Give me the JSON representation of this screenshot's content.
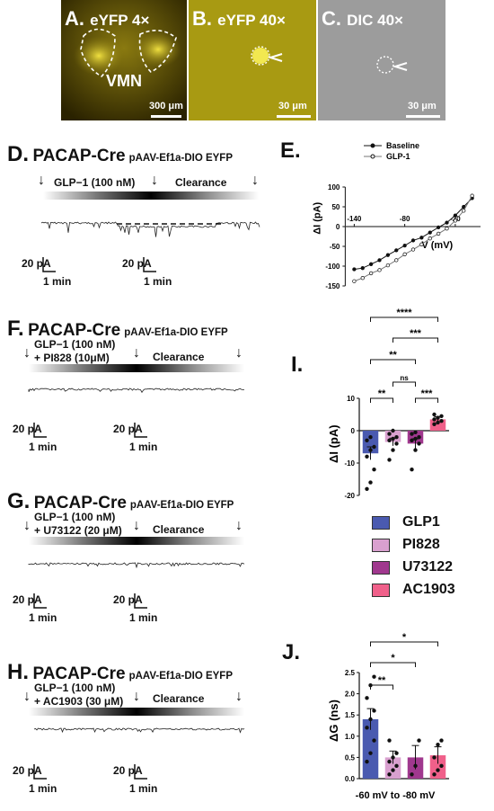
{
  "panels_micro": [
    {
      "letter": "A.",
      "label": "eYFP 4×",
      "region": "VMN",
      "scale": "300 μm",
      "color": "#5a4a05"
    },
    {
      "letter": "B.",
      "label": "eYFP 40×",
      "scale": "30 μm",
      "color": "#a89a10"
    },
    {
      "letter": "C.",
      "label": "DIC 40×",
      "scale": "30 μm",
      "color": "#9a9a9a"
    }
  ],
  "panel_d": {
    "letter": "D.",
    "title": "PACAP-Cre",
    "vector": "pAAV-Ef1a-DIO EYFP",
    "drug": "GLP−1 (100 nM)",
    "clearance": "Clearance",
    "scale_pa": "20 pA",
    "scale_t": "1 min"
  },
  "panel_f": {
    "letter": "F.",
    "title": "PACAP-Cre",
    "vector": "pAAV-Ef1a-DIO EYFP",
    "drug1": "GLP−1 (100 nM)",
    "drug2": "+ PI828 (10μM)",
    "clearance": "Clearance",
    "scale_pa": "20 pA",
    "scale_t": "1 min"
  },
  "panel_g": {
    "letter": "G.",
    "title": "PACAP-Cre",
    "vector": "pAAV-Ef1a-DIO EYFP",
    "drug1": "GLP−1 (100 nM)",
    "drug2": "+ U73122 (20 μM)",
    "clearance": "Clearance",
    "scale_pa": "20 pA",
    "scale_t": "1 min"
  },
  "panel_h": {
    "letter": "H.",
    "title": "PACAP-Cre",
    "vector": "pAAV-Ef1a-DIO EYFP",
    "drug1": "GLP−1 (100 nM)",
    "drug2": "+ AC1903 (30 μM)",
    "clearance": "Clearance",
    "scale_pa": "20 pA",
    "scale_t": "1 min"
  },
  "legend": [
    {
      "label": "GLP1",
      "color": "#4a5ab0"
    },
    {
      "label": "PI828",
      "color": "#d9a0cf"
    },
    {
      "label": "U73122",
      "color": "#a0388e"
    },
    {
      "label": "AC1903",
      "color": "#f0608a"
    }
  ],
  "chart_data": [
    {
      "panel": "E.",
      "type": "line",
      "xlabel": "V (mV)",
      "ylabel": "ΔI (pA)",
      "xlim": [
        -150,
        10
      ],
      "ylim": [
        -150,
        100
      ],
      "xticks": [
        "-140",
        "-80",
        "-20"
      ],
      "yticks": [
        "100",
        "50",
        "0",
        "-50",
        "-100",
        "-150"
      ],
      "legend_position": "top",
      "series": [
        {
          "name": "Baseline",
          "x": [
            -140,
            -130,
            -120,
            -110,
            -100,
            -90,
            -80,
            -70,
            -60,
            -50,
            -40,
            -30,
            -20,
            -10,
            0
          ],
          "y": [
            -108,
            -105,
            -95,
            -85,
            -72,
            -60,
            -48,
            -35,
            -28,
            -15,
            -2,
            10,
            28,
            50,
            72
          ]
        },
        {
          "name": "GLP-1",
          "x": [
            -140,
            -130,
            -120,
            -110,
            -100,
            -90,
            -80,
            -70,
            -60,
            -50,
            -40,
            -30,
            -20,
            -10,
            0
          ],
          "y": [
            -138,
            -130,
            -118,
            -110,
            -98,
            -85,
            -70,
            -58,
            -45,
            -30,
            -18,
            -5,
            15,
            40,
            78
          ]
        }
      ]
    },
    {
      "panel": "I.",
      "type": "bar",
      "ylabel": "ΔI (pA)",
      "ylim": [
        -20,
        10
      ],
      "yticks": [
        "10",
        "0",
        "-10",
        "-20"
      ],
      "categories": [
        "GLP1",
        "PI828",
        "U73122",
        "AC1903"
      ],
      "values": [
        -7,
        -3.5,
        -4,
        3.5
      ],
      "errors": [
        2,
        1.2,
        1.5,
        0.8
      ],
      "points": [
        [
          -18,
          -16,
          -12,
          -8,
          -6,
          -5,
          -3,
          -2
        ],
        [
          -9,
          -6,
          -4,
          -3,
          -2.5,
          -2,
          -1,
          0
        ],
        [
          -12,
          -6,
          -4,
          -3,
          -2.5,
          -2,
          -1,
          -0.5
        ],
        [
          2,
          2.5,
          3,
          3.5,
          4,
          4.5,
          5
        ]
      ],
      "significance": [
        "****",
        "***",
        "**",
        "ns",
        "**",
        "***"
      ]
    },
    {
      "panel": "J.",
      "type": "bar",
      "ylabel": "ΔG (ns)",
      "xlabel": "-60 mV to -80 mV",
      "ylim": [
        0,
        2.5
      ],
      "yticks": [
        "2.5",
        "2.0",
        "1.5",
        "1.0",
        "0.5",
        "0.0"
      ],
      "categories": [
        "GLP1",
        "PI828",
        "U73122",
        "AC1903"
      ],
      "values": [
        1.4,
        0.5,
        0.5,
        0.55
      ],
      "errors": [
        0.25,
        0.15,
        0.28,
        0.2
      ],
      "points": [
        [
          0.4,
          0.6,
          0.9,
          1.2,
          1.4,
          1.6,
          1.9,
          2.2,
          2.4
        ],
        [
          0.1,
          0.2,
          0.3,
          0.4,
          0.5,
          0.6,
          0.9
        ],
        [
          0.1,
          0.3,
          0.9
        ],
        [
          0.1,
          0.2,
          0.3,
          0.5,
          0.8,
          0.9
        ]
      ],
      "significance": [
        "*",
        "*",
        "**"
      ]
    }
  ]
}
